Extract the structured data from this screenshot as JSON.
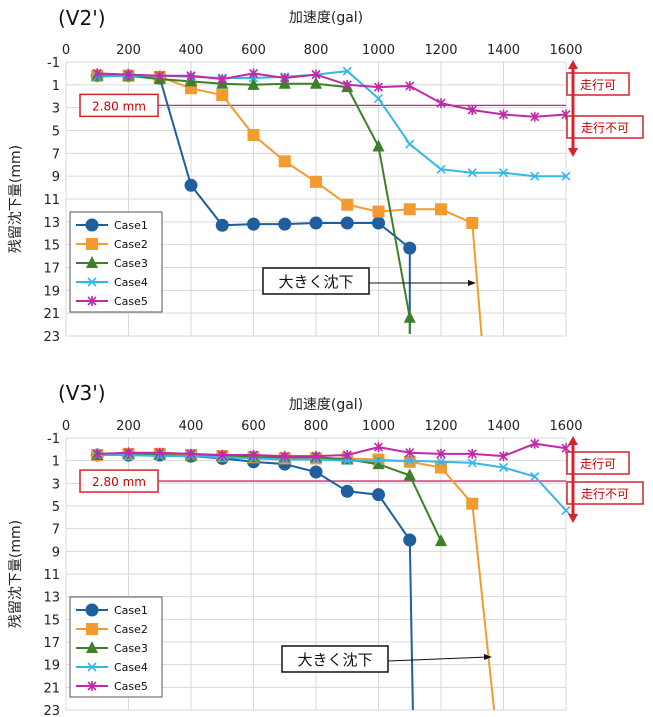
{
  "colors": {
    "grid": "#d9d9d9",
    "threshold": "#e0206a",
    "boxes": "#d4242c",
    "Case1": "#1f5f9e",
    "Case2": "#f39a30",
    "Case3": "#3f7f2a",
    "Case4": "#35b7e9",
    "Case5": "#c02aa8"
  },
  "chart_data": [
    {
      "type": "line",
      "panel_label": "(V2')",
      "xlabel": "加速度(gal)",
      "ylabel": "残留沈下量(mm)",
      "xlim": [
        0,
        1600
      ],
      "ylim": [
        -1,
        23
      ],
      "y_inverted": true,
      "grid": true,
      "legend_position": "bottom-left",
      "xticks": [
        "0",
        "200",
        "400",
        "600",
        "800",
        "1000",
        "1200",
        "1400",
        "1600"
      ],
      "yticks": [
        "-1",
        "1",
        "3",
        "5",
        "7",
        "9",
        "11",
        "13",
        "15",
        "17",
        "19",
        "21",
        "23"
      ],
      "threshold_label": "2.80 mm",
      "threshold_value": 2.8,
      "annot_ok": "走行可",
      "annot_ng": "走行不可",
      "annot_big": "大きく沈下",
      "series": [
        {
          "name": "Case1",
          "marker": "circle",
          "x": [
            100,
            200,
            300,
            400,
            500,
            600,
            700,
            800,
            900,
            1000,
            1100
          ],
          "y": [
            0.2,
            0.2,
            0.4,
            9.8,
            13.3,
            13.2,
            13.2,
            13.1,
            13.1,
            13.1,
            15.3
          ],
          "tail": [
            1100,
            22.8
          ]
        },
        {
          "name": "Case2",
          "marker": "square",
          "x": [
            100,
            200,
            300,
            400,
            500,
            600,
            700,
            800,
            900,
            1000,
            1100,
            1200,
            1300
          ],
          "y": [
            0.2,
            0.2,
            0.3,
            1.3,
            1.9,
            5.4,
            7.7,
            9.5,
            11.5,
            12.1,
            11.9,
            11.9,
            13.1
          ],
          "tail": [
            1330,
            23
          ]
        },
        {
          "name": "Case3",
          "marker": "triangle",
          "x": [
            100,
            200,
            300,
            400,
            500,
            600,
            700,
            800,
            900,
            1000,
            1100
          ],
          "y": [
            0.2,
            0.2,
            0.5,
            0.7,
            0.9,
            1.0,
            0.9,
            0.9,
            1.2,
            6.4,
            21.4
          ],
          "tail": [
            1100,
            22.8
          ]
        },
        {
          "name": "Case4",
          "marker": "x",
          "x": [
            100,
            200,
            300,
            400,
            500,
            600,
            700,
            800,
            900,
            1000,
            1100,
            1200,
            1300,
            1400,
            1500,
            1600
          ],
          "y": [
            0.3,
            0.2,
            0.2,
            0.3,
            0.4,
            0.4,
            0.3,
            0.1,
            -0.2,
            2.2,
            6.2,
            8.4,
            8.7,
            8.7,
            9.0,
            9.0
          ]
        },
        {
          "name": "Case5",
          "marker": "star",
          "x": [
            100,
            200,
            300,
            400,
            500,
            600,
            700,
            800,
            900,
            1000,
            1100,
            1200,
            1300,
            1400,
            1500,
            1600
          ],
          "y": [
            0.0,
            0.1,
            0.2,
            0.2,
            0.5,
            0.0,
            0.4,
            0.1,
            1.0,
            1.2,
            1.1,
            2.6,
            3.2,
            3.6,
            3.8,
            3.6
          ]
        }
      ]
    },
    {
      "type": "line",
      "panel_label": "(V3')",
      "xlabel": "加速度(gal)",
      "ylabel": "残留沈下量(mm)",
      "xlim": [
        0,
        1600
      ],
      "ylim": [
        -1,
        23
      ],
      "y_inverted": true,
      "grid": true,
      "legend_position": "bottom-left",
      "xticks": [
        "0",
        "200",
        "400",
        "600",
        "800",
        "1000",
        "1200",
        "1400",
        "1600"
      ],
      "yticks": [
        "-1",
        "1",
        "3",
        "5",
        "7",
        "9",
        "11",
        "13",
        "15",
        "17",
        "19",
        "21",
        "23"
      ],
      "threshold_label": "2.80 mm",
      "threshold_value": 2.8,
      "annot_ok": "走行可",
      "annot_ng": "走行不可",
      "annot_big": "大きく沈下",
      "series": [
        {
          "name": "Case1",
          "marker": "circle",
          "x": [
            100,
            200,
            300,
            400,
            500,
            600,
            700,
            800,
            900,
            1000,
            1100
          ],
          "y": [
            0.5,
            0.5,
            0.5,
            0.6,
            0.8,
            1.1,
            1.3,
            2.0,
            3.7,
            4.0,
            8.0
          ],
          "tail": [
            1110,
            23
          ]
        },
        {
          "name": "Case2",
          "marker": "square",
          "x": [
            100,
            200,
            300,
            400,
            500,
            600,
            700,
            800,
            900,
            1000,
            1100,
            1200,
            1300
          ],
          "y": [
            0.5,
            0.4,
            0.4,
            0.5,
            0.6,
            0.7,
            0.8,
            0.8,
            0.8,
            0.9,
            1.1,
            1.6,
            4.8
          ],
          "tail": [
            1370,
            23
          ]
        },
        {
          "name": "Case3",
          "marker": "triangle",
          "x": [
            100,
            200,
            300,
            400,
            500,
            600,
            700,
            800,
            900,
            1000,
            1100,
            1200
          ],
          "y": [
            0.5,
            0.4,
            0.5,
            0.6,
            0.6,
            0.7,
            0.7,
            0.7,
            0.9,
            1.3,
            2.3,
            8.1
          ]
        },
        {
          "name": "Case4",
          "marker": "x",
          "x": [
            100,
            200,
            300,
            400,
            500,
            600,
            700,
            800,
            900,
            1000,
            1100,
            1200,
            1300,
            1400,
            1500,
            1600
          ],
          "y": [
            0.5,
            0.5,
            0.6,
            0.6,
            0.7,
            0.8,
            0.9,
            0.9,
            1.0,
            1.0,
            1.0,
            1.1,
            1.2,
            1.6,
            2.4,
            5.4
          ]
        },
        {
          "name": "Case5",
          "marker": "star",
          "x": [
            100,
            200,
            300,
            400,
            500,
            600,
            700,
            800,
            900,
            1000,
            1100,
            1200,
            1300,
            1400,
            1500,
            1600
          ],
          "y": [
            0.4,
            0.3,
            0.3,
            0.4,
            0.5,
            0.5,
            0.6,
            0.6,
            0.5,
            -0.2,
            0.3,
            0.4,
            0.4,
            0.6,
            -0.5,
            -0.1
          ]
        }
      ]
    }
  ]
}
